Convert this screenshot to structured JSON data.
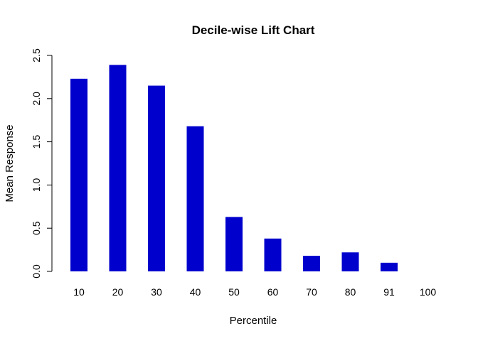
{
  "chart_data": {
    "type": "bar",
    "title": "Decile-wise Lift Chart",
    "xlabel": "Percentile",
    "ylabel": "Mean Response",
    "categories": [
      "10",
      "20",
      "30",
      "40",
      "50",
      "60",
      "70",
      "80",
      "91",
      "100"
    ],
    "values": [
      2.23,
      2.39,
      2.15,
      1.68,
      0.63,
      0.38,
      0.18,
      0.22,
      0.1,
      0.0
    ],
    "ylim": [
      0,
      2.5
    ],
    "yticks": [
      "0.0",
      "0.5",
      "1.0",
      "1.5",
      "2.0",
      "2.5"
    ],
    "grid": false,
    "bar_color": "#0000CD"
  }
}
